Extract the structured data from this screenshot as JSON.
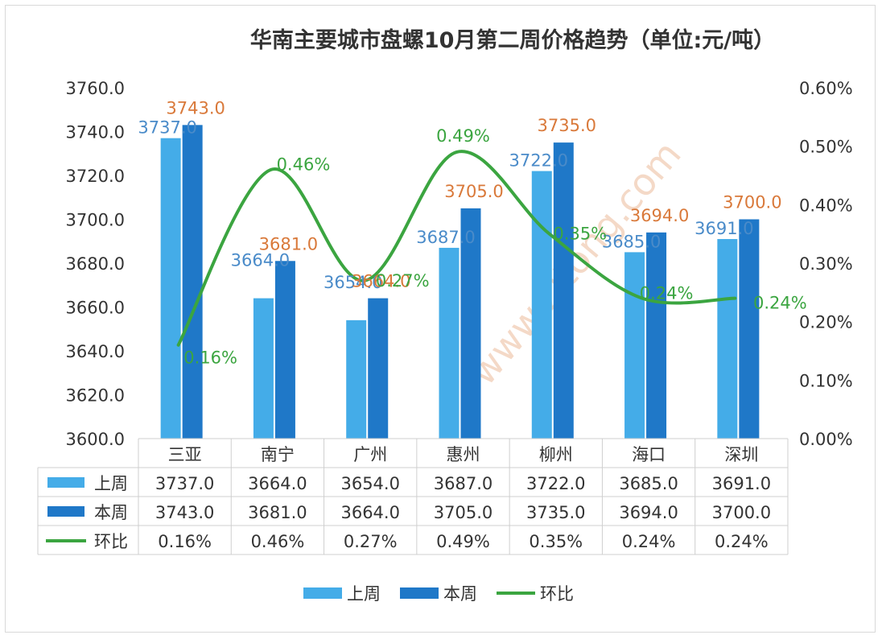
{
  "chart_data": {
    "type": "bar",
    "title": "华南主要城市盘螺10月第二周价格趋势（单位:元/吨）",
    "categories": [
      "三亚",
      "南宁",
      "广州",
      "惠州",
      "柳州",
      "海口",
      "深圳"
    ],
    "series": [
      {
        "name": "上周",
        "type": "bar",
        "axis": "left",
        "color": "#44ACE8",
        "values": [
          3737.0,
          3664.0,
          3654.0,
          3687.0,
          3722.0,
          3685.0,
          3691.0
        ],
        "labels": [
          "3737.0",
          "3664.0",
          "3654.0",
          "3687.0",
          "3722.0",
          "3685.0",
          "3691.0"
        ]
      },
      {
        "name": "本周",
        "type": "bar",
        "axis": "left",
        "color": "#1F78C8",
        "values": [
          3743.0,
          3681.0,
          3664.0,
          3705.0,
          3735.0,
          3694.0,
          3700.0
        ],
        "labels": [
          "3743.0",
          "3681.0",
          "3664.0",
          "3705.0",
          "3735.0",
          "3694.0",
          "3700.0"
        ]
      },
      {
        "name": "环比",
        "type": "line",
        "axis": "right",
        "color": "#3BA540",
        "values": [
          0.16,
          0.46,
          0.27,
          0.49,
          0.35,
          0.24,
          0.24
        ],
        "labels": [
          "0.16%",
          "0.46%",
          "0.27%",
          "0.49%",
          "0.35%",
          "0.24%",
          "0.24%"
        ]
      }
    ],
    "y_left": {
      "min": 3600,
      "max": 3760,
      "step": 20,
      "ticks": [
        "3600.0",
        "3620.0",
        "3640.0",
        "3660.0",
        "3680.0",
        "3700.0",
        "3720.0",
        "3740.0",
        "3760.0"
      ]
    },
    "y_right": {
      "min": 0,
      "max": 0.6,
      "step": 0.1,
      "ticks": [
        "0.00%",
        "0.10%",
        "0.20%",
        "0.30%",
        "0.40%",
        "0.50%",
        "0.60%"
      ]
    },
    "label_colors": {
      "上周": "#4A8BC9",
      "本周": "#D9793A",
      "环比": "#3BA540"
    },
    "legend": {
      "placement": "bottom",
      "items": [
        "上周",
        "本周",
        "环比"
      ]
    },
    "data_table": true,
    "watermark": {
      "text": "www.zjtong.com",
      "color": "#F3D3BE"
    }
  }
}
